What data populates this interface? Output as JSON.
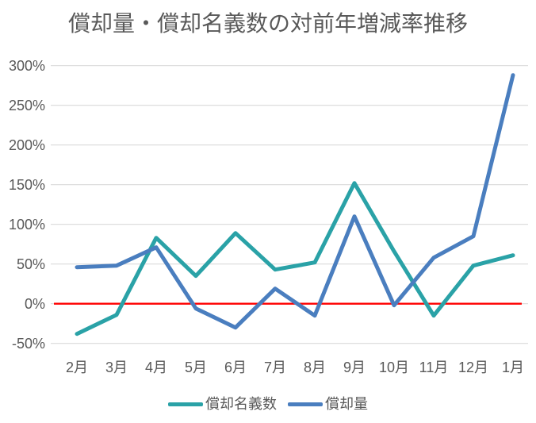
{
  "chart_data": {
    "type": "line",
    "title": "償却量・償却名義数の対前年増減率推移",
    "categories": [
      "2月",
      "3月",
      "4月",
      "5月",
      "6月",
      "7月",
      "8月",
      "9月",
      "10月",
      "11月",
      "12月",
      "1月"
    ],
    "series": [
      {
        "name": "償却名義数",
        "color": "#2AA2A7",
        "values": [
          -38,
          -14,
          83,
          35,
          89,
          43,
          52,
          152,
          66,
          -15,
          48,
          61
        ]
      },
      {
        "name": "償却量",
        "color": "#4A7EBF",
        "values": [
          46,
          48,
          71,
          -6,
          -30,
          19,
          -15,
          110,
          -2,
          58,
          85,
          288
        ]
      }
    ],
    "ylim": [
      -50,
      300
    ],
    "y_ticks": [
      300,
      250,
      200,
      150,
      100,
      50,
      0,
      -50
    ],
    "y_tick_suffix": "%",
    "zero_line": {
      "value": 0,
      "color": "#FF0000"
    },
    "grid": true,
    "gridline_color": "#D9D9D9",
    "text_color": "#595959",
    "legend_position": "bottom"
  }
}
